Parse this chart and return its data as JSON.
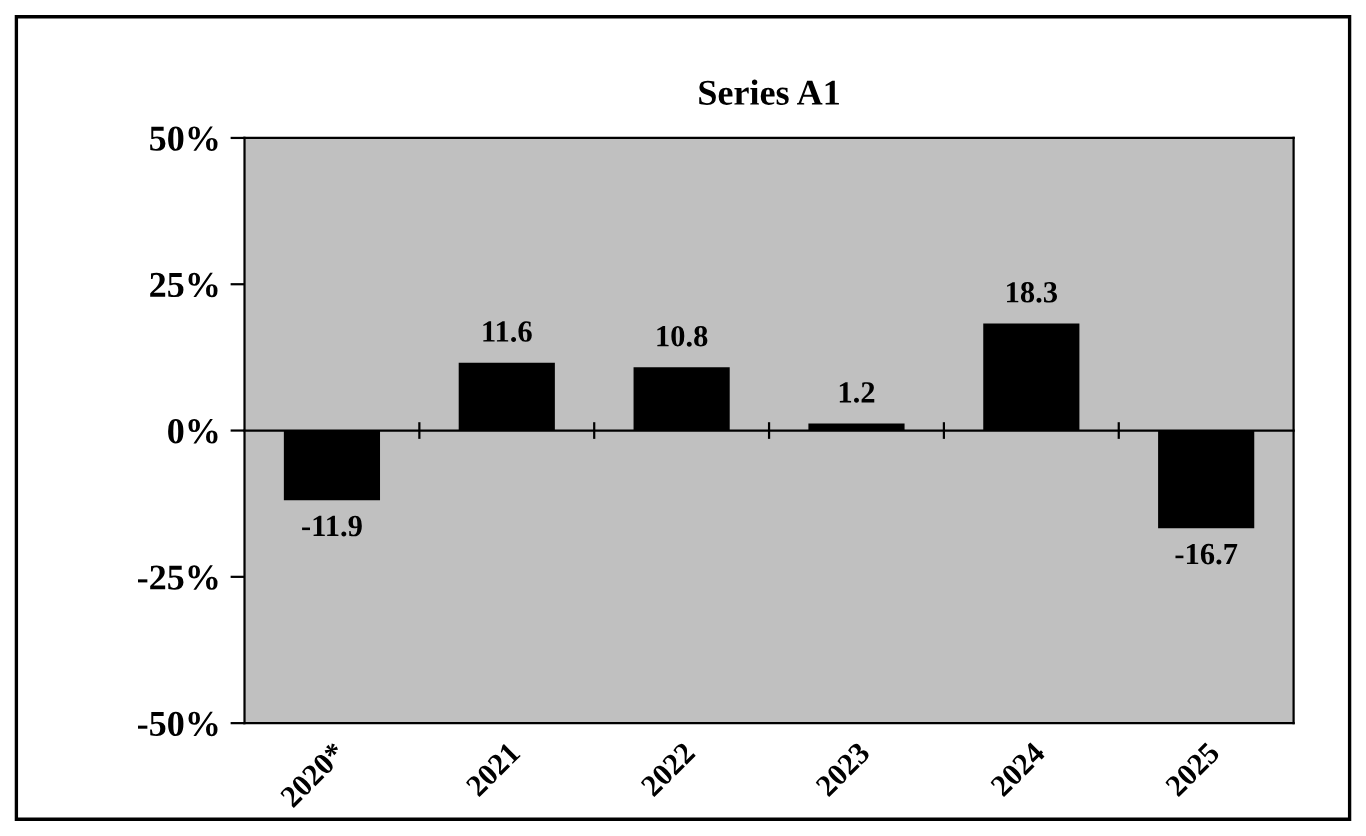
{
  "chart_data": {
    "type": "bar",
    "title": "Series A1",
    "categories": [
      "2020*",
      "2021",
      "2022",
      "2023",
      "2024",
      "2025"
    ],
    "values": [
      -11.9,
      11.6,
      10.8,
      1.2,
      18.3,
      -16.7
    ],
    "color": "#000000",
    "ylim": [
      -50,
      50
    ],
    "yticks": [
      {
        "value": -50,
        "label": "-50%"
      },
      {
        "value": -25,
        "label": "-25%"
      },
      {
        "value": 0,
        "label": "0%"
      },
      {
        "value": 25,
        "label": "25%"
      },
      {
        "value": 50,
        "label": "50%"
      }
    ],
    "data_labels": true,
    "legend": false
  }
}
